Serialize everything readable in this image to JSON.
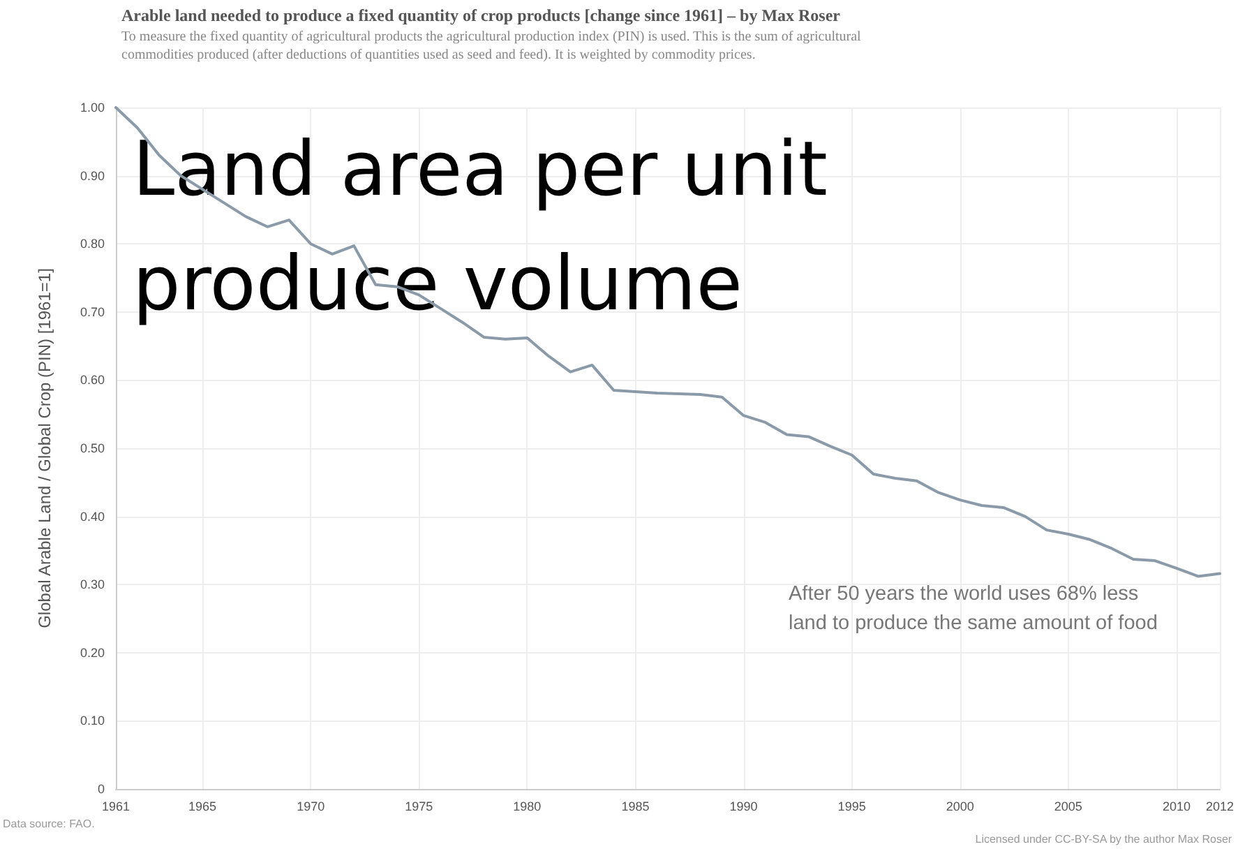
{
  "chart_data": {
    "type": "line",
    "title": "Arable land needed to produce a fixed quantity of crop products [change since 1961] – by Max Roser",
    "subtitle": "To measure the fixed quantity of agricultural products the agricultural production index (PIN) is used. This is the sum of agricultural\ncommodities produced (after deductions of quantities used as seed and feed). It is weighted by commodity prices.",
    "ylabel": "Global Arable Land / Global Crop (PIN) [1961=1]",
    "annotations": [
      "Land area per unit\nproduce volume",
      "After 50 years the world uses 68% less\nland to produce the same amount of food",
      "Data source: FAO.",
      "Licensed under CC-BY-SA by the author Max Roser"
    ],
    "x": [
      1961,
      1962,
      1963,
      1964,
      1965,
      1966,
      1967,
      1968,
      1969,
      1970,
      1971,
      1972,
      1973,
      1974,
      1975,
      1976,
      1977,
      1978,
      1979,
      1980,
      1981,
      1982,
      1983,
      1984,
      1985,
      1986,
      1987,
      1988,
      1989,
      1990,
      1991,
      1992,
      1993,
      1994,
      1995,
      1996,
      1997,
      1998,
      1999,
      2000,
      2001,
      2002,
      2003,
      2004,
      2005,
      2006,
      2007,
      2008,
      2009,
      2010,
      2011,
      2012
    ],
    "series": [
      {
        "color": "#8a9aa8",
        "values": [
          1.0,
          0.97,
          0.93,
          0.9,
          0.88,
          0.86,
          0.84,
          0.825,
          0.835,
          0.8,
          0.785,
          0.797,
          0.74,
          0.737,
          0.725,
          0.705,
          0.685,
          0.663,
          0.66,
          0.662,
          0.635,
          0.612,
          0.622,
          0.585,
          0.583,
          0.581,
          0.58,
          0.579,
          0.575,
          0.548,
          0.538,
          0.52,
          0.517,
          0.503,
          0.49,
          0.462,
          0.456,
          0.452,
          0.435,
          0.424,
          0.416,
          0.413,
          0.4,
          0.38,
          0.374,
          0.366,
          0.353,
          0.337,
          0.335,
          0.324,
          0.312,
          0.316
        ]
      }
    ],
    "xlim": [
      1961,
      2012
    ],
    "xticks": [
      1961,
      1965,
      1970,
      1975,
      1980,
      1985,
      1990,
      1995,
      2000,
      2005,
      2010,
      2012
    ],
    "ylim": [
      0,
      1
    ],
    "yticks": [
      {
        "value": 0,
        "label": "0"
      },
      {
        "value": 0.1,
        "label": "0.10"
      },
      {
        "value": 0.2,
        "label": "0.20"
      },
      {
        "value": 0.3,
        "label": "0.30"
      },
      {
        "value": 0.4,
        "label": "0.40"
      },
      {
        "value": 0.5,
        "label": "0.50"
      },
      {
        "value": 0.6,
        "label": "0.60"
      },
      {
        "value": 0.7,
        "label": "0.70"
      },
      {
        "value": 0.8,
        "label": "0.80"
      },
      {
        "value": 0.9,
        "label": "0.90"
      },
      {
        "value": 1,
        "label": "1.00"
      }
    ],
    "grid": true,
    "marker": "none",
    "line_style": "solid"
  }
}
